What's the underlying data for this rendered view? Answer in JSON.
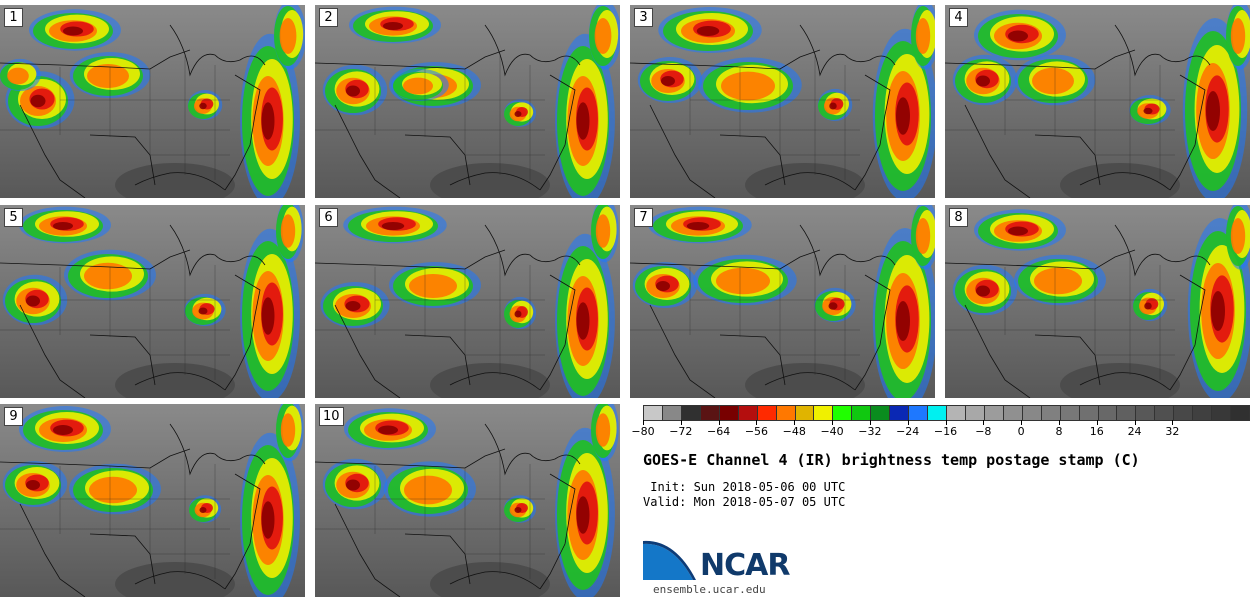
{
  "panels": [
    {
      "number": "1"
    },
    {
      "number": "2"
    },
    {
      "number": "3"
    },
    {
      "number": "4"
    },
    {
      "number": "5"
    },
    {
      "number": "6"
    },
    {
      "number": "7"
    },
    {
      "number": "8"
    },
    {
      "number": "9"
    },
    {
      "number": "10"
    }
  ],
  "colorbar": {
    "colors": [
      "#c8c8c8",
      "#888888",
      "#303030",
      "#5a1414",
      "#780000",
      "#b40e0e",
      "#ff2a00",
      "#ff7800",
      "#e0b400",
      "#f0f000",
      "#20ff00",
      "#10c810",
      "#0a8c1e",
      "#0a28b4",
      "#1e78ff",
      "#00f0f0",
      "#b4b4b4",
      "#a8a8a8",
      "#9c9c9c",
      "#909090",
      "#888888",
      "#808080",
      "#787878",
      "#707070",
      "#686868",
      "#606060",
      "#585858",
      "#505050",
      "#484848",
      "#404040",
      "#383838",
      "#303030"
    ],
    "tick_labels": [
      "−80",
      "−72",
      "−64",
      "−56",
      "−48",
      "−40",
      "−32",
      "−24",
      "−16",
      "−8",
      "0",
      "8",
      "16",
      "24",
      "32"
    ]
  },
  "title": "GOES-E Channel 4 (IR) brightness temp postage stamp (C)",
  "init_line": " Init: Sun 2018-05-06 00 UTC",
  "valid_line": "Valid: Mon 2018-05-07 05 UTC",
  "logo_text": "NCAR",
  "url": "ensemble.ucar.edu"
}
